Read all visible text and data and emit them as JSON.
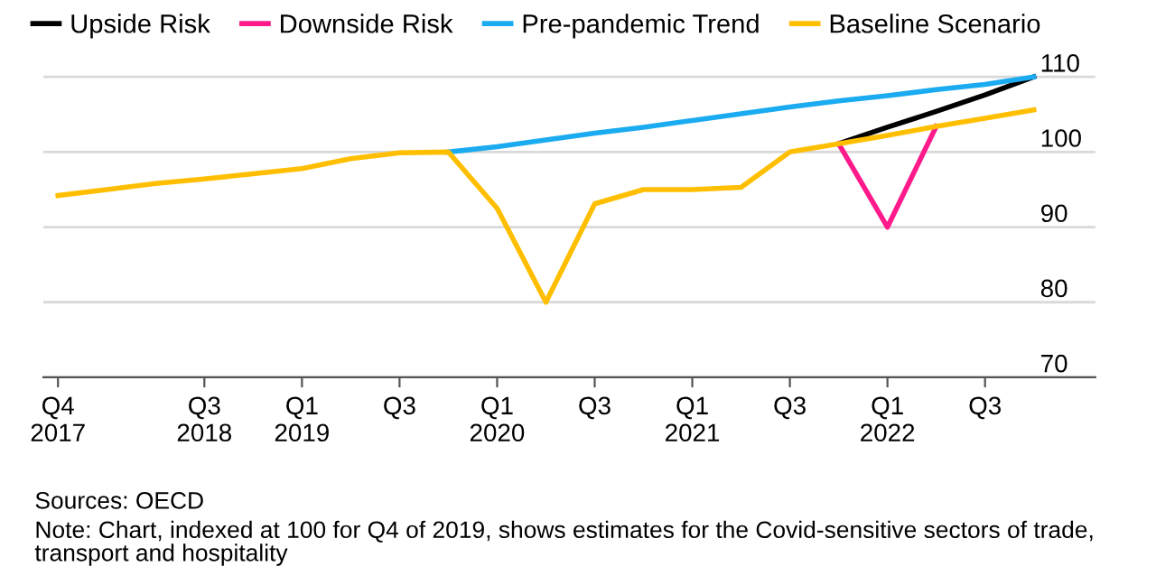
{
  "chart_data": {
    "type": "line",
    "categories": [
      "Q4 2017",
      null,
      null,
      "Q3 2018",
      null,
      "Q1 2019",
      null,
      "Q3",
      null,
      "Q1 2020",
      null,
      "Q3",
      null,
      "Q1 2021",
      null,
      "Q3",
      null,
      "Q1 2022",
      null,
      "Q3",
      null
    ],
    "series": [
      {
        "name": "Upside Risk",
        "color": "#000000",
        "values": [
          null,
          null,
          null,
          null,
          null,
          null,
          null,
          null,
          null,
          null,
          null,
          null,
          null,
          null,
          null,
          null,
          101.1,
          103.3,
          105.4,
          107.6,
          110
        ]
      },
      {
        "name": "Downside Risk",
        "color": "#ff1a8c",
        "values": [
          null,
          null,
          null,
          null,
          null,
          null,
          null,
          null,
          null,
          null,
          null,
          null,
          null,
          null,
          null,
          null,
          101.1,
          90,
          103.4,
          null,
          null
        ]
      },
      {
        "name": "Pre-pandemic Trend",
        "color": "#1aabf0",
        "values": [
          null,
          null,
          null,
          null,
          null,
          null,
          null,
          null,
          100,
          100.7,
          101.6,
          102.5,
          103.3,
          104.2,
          105.1,
          106,
          106.8,
          107.5,
          108.3,
          109,
          110
        ]
      },
      {
        "name": "Baseline Scenario",
        "color": "#ffbf00",
        "values": [
          94.2,
          95,
          95.8,
          96.4,
          97.1,
          97.8,
          99.1,
          99.9,
          100,
          92.5,
          80,
          93.1,
          95,
          95,
          95.3,
          100,
          101.1,
          102.2,
          103.4,
          104.5,
          105.6
        ]
      }
    ],
    "ylim": [
      70,
      110.5
    ],
    "yticks": [
      70,
      80,
      90,
      100,
      110
    ],
    "grid": "y",
    "legend": "top left",
    "annotations": [
      "Sources: OECD",
      "Note: Chart, indexed at 100 for Q4 of 2019, shows estimates for the Covid-sensitive sectors of trade, transport and hospitality"
    ]
  }
}
